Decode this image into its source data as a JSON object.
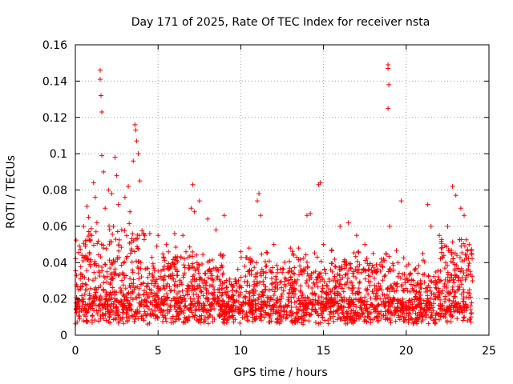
{
  "chart_data": {
    "type": "scatter",
    "title": "Day 171 of 2025, Rate Of TEC Index for receiver nsta",
    "xlabel": "GPS time / hours",
    "ylabel": "ROTI / TECUs",
    "xlim": [
      0,
      25
    ],
    "ylim": [
      0,
      0.16
    ],
    "xticks": [
      0,
      5,
      10,
      15,
      20,
      25
    ],
    "xtick_labels": [
      "0",
      "5",
      "10",
      "15",
      "20",
      "25"
    ],
    "yticks": [
      0,
      0.02,
      0.04,
      0.06,
      0.08,
      0.1,
      0.12,
      0.14,
      0.16
    ],
    "ytick_labels": [
      "0",
      "0.02",
      "0.04",
      "0.06",
      "0.08",
      "0.1",
      "0.12",
      "0.14",
      "0.16"
    ],
    "grid": true,
    "marker": "+",
    "color": "#ff0000",
    "series": [
      {
        "name": "ROTI",
        "note": "dense cloud of ~0.004-0.05 TECU/min points over 0-24 h; representative sampled points and outliers below",
        "points": [
          [
            0.1,
            0.018
          ],
          [
            0.2,
            0.025
          ],
          [
            0.3,
            0.031
          ],
          [
            0.4,
            0.044
          ],
          [
            0.5,
            0.06
          ],
          [
            0.6,
            0.052
          ],
          [
            0.7,
            0.071
          ],
          [
            0.8,
            0.065
          ],
          [
            0.9,
            0.038
          ],
          [
            1.0,
            0.055
          ],
          [
            1.1,
            0.084
          ],
          [
            1.2,
            0.076
          ],
          [
            1.3,
            0.062
          ],
          [
            1.5,
            0.146
          ],
          [
            1.5,
            0.141
          ],
          [
            1.55,
            0.132
          ],
          [
            1.6,
            0.123
          ],
          [
            1.6,
            0.099
          ],
          [
            1.7,
            0.09
          ],
          [
            1.8,
            0.07
          ],
          [
            2.0,
            0.08
          ],
          [
            2.2,
            0.078
          ],
          [
            2.3,
            0.06
          ],
          [
            2.4,
            0.098
          ],
          [
            2.5,
            0.088
          ],
          [
            2.6,
            0.072
          ],
          [
            2.8,
            0.058
          ],
          [
            3.0,
            0.076
          ],
          [
            3.2,
            0.082
          ],
          [
            3.3,
            0.068
          ],
          [
            3.5,
            0.096
          ],
          [
            3.6,
            0.116
          ],
          [
            3.65,
            0.113
          ],
          [
            3.7,
            0.107
          ],
          [
            3.8,
            0.1
          ],
          [
            3.9,
            0.085
          ],
          [
            4.2,
            0.055
          ],
          [
            4.5,
            0.056
          ],
          [
            5.0,
            0.055
          ],
          [
            5.5,
            0.05
          ],
          [
            6.0,
            0.056
          ],
          [
            6.5,
            0.055
          ],
          [
            7.0,
            0.07
          ],
          [
            7.1,
            0.083
          ],
          [
            7.2,
            0.068
          ],
          [
            7.5,
            0.074
          ],
          [
            8.0,
            0.064
          ],
          [
            8.5,
            0.058
          ],
          [
            9.0,
            0.066
          ],
          [
            10.0,
            0.046
          ],
          [
            10.5,
            0.048
          ],
          [
            11.0,
            0.074
          ],
          [
            11.1,
            0.078
          ],
          [
            11.2,
            0.066
          ],
          [
            12.0,
            0.05
          ],
          [
            13.0,
            0.048
          ],
          [
            13.5,
            0.048
          ],
          [
            14.0,
            0.066
          ],
          [
            14.2,
            0.067
          ],
          [
            14.7,
            0.083
          ],
          [
            14.8,
            0.084
          ],
          [
            15.0,
            0.05
          ],
          [
            15.5,
            0.047
          ],
          [
            16.0,
            0.06
          ],
          [
            16.5,
            0.062
          ],
          [
            17.0,
            0.055
          ],
          [
            17.5,
            0.05
          ],
          [
            18.0,
            0.045
          ],
          [
            18.5,
            0.042
          ],
          [
            18.9,
            0.149
          ],
          [
            18.9,
            0.147
          ],
          [
            18.95,
            0.138
          ],
          [
            18.9,
            0.125
          ],
          [
            19.0,
            0.06
          ],
          [
            19.5,
            0.04
          ],
          [
            19.7,
            0.074
          ],
          [
            20.0,
            0.038
          ],
          [
            20.5,
            0.036
          ],
          [
            21.0,
            0.045
          ],
          [
            21.3,
            0.072
          ],
          [
            21.5,
            0.06
          ],
          [
            22.0,
            0.055
          ],
          [
            22.5,
            0.06
          ],
          [
            22.8,
            0.082
          ],
          [
            23.0,
            0.077
          ],
          [
            23.3,
            0.07
          ],
          [
            23.5,
            0.066
          ],
          [
            23.8,
            0.05
          ],
          [
            24.0,
            0.03
          ]
        ]
      }
    ]
  }
}
